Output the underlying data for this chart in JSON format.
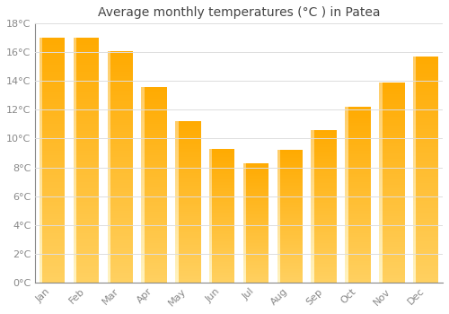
{
  "title": "Average monthly temperatures (°C ) in Patea",
  "months": [
    "Jan",
    "Feb",
    "Mar",
    "Apr",
    "May",
    "Jun",
    "Jul",
    "Aug",
    "Sep",
    "Oct",
    "Nov",
    "Dec"
  ],
  "values": [
    17.0,
    17.0,
    16.1,
    13.6,
    11.2,
    9.3,
    8.3,
    9.2,
    10.6,
    12.2,
    13.9,
    15.7
  ],
  "bar_color_main": "#FFAA00",
  "bar_color_highlight": "#FFD060",
  "ylim": [
    0,
    18
  ],
  "yticks": [
    0,
    2,
    4,
    6,
    8,
    10,
    12,
    14,
    16,
    18
  ],
  "ytick_labels": [
    "0°C",
    "2°C",
    "4°C",
    "6°C",
    "8°C",
    "10°C",
    "12°C",
    "14°C",
    "16°C",
    "18°C"
  ],
  "background_color": "#FFFFFF",
  "grid_color": "#DDDDDD",
  "title_fontsize": 10,
  "tick_fontsize": 8,
  "title_color": "#444444",
  "tick_color": "#888888",
  "bar_width": 0.75
}
